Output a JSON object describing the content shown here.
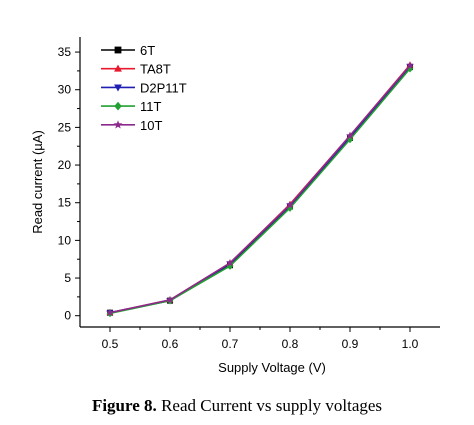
{
  "caption": {
    "label": "Figure 8.",
    "text": " Read Current vs supply voltages"
  },
  "chart_data": {
    "type": "line",
    "xlabel": "Supply Voltage (V)",
    "ylabel": "Read current (µA)",
    "xlim": [
      0.45,
      1.05
    ],
    "ylim": [
      -1.5,
      37
    ],
    "xticks": [
      0.5,
      0.6,
      0.7,
      0.8,
      0.9,
      1.0
    ],
    "xtick_labels": [
      "0.5",
      "0.6",
      "0.7",
      "0.8",
      "0.9",
      "1.0"
    ],
    "yticks": [
      0,
      5,
      10,
      15,
      20,
      25,
      30,
      35
    ],
    "ytick_labels": [
      "0",
      "5",
      "10",
      "15",
      "20",
      "25",
      "30",
      "35"
    ],
    "grid": false,
    "legend_position": "top-left",
    "x": [
      0.5,
      0.6,
      0.7,
      0.8,
      0.9,
      1.0
    ],
    "series": [
      {
        "name": "6T",
        "values": [
          0.4,
          2.0,
          6.7,
          14.5,
          23.6,
          33.0
        ],
        "color": "#000000",
        "marker": "square"
      },
      {
        "name": "TA8T",
        "values": [
          0.4,
          2.1,
          7.0,
          14.8,
          23.9,
          33.3
        ],
        "color": "#e8192c",
        "marker": "triangle-up"
      },
      {
        "name": "D2P11T",
        "values": [
          0.4,
          2.0,
          6.9,
          14.6,
          23.7,
          33.1
        ],
        "color": "#1f1fb4",
        "marker": "triangle-down"
      },
      {
        "name": "11T",
        "values": [
          0.3,
          2.0,
          6.6,
          14.3,
          23.4,
          32.8
        ],
        "color": "#22a032",
        "marker": "diamond"
      },
      {
        "name": "10T",
        "values": [
          0.4,
          2.1,
          7.0,
          14.7,
          23.9,
          33.2
        ],
        "color": "#8b2a8b",
        "marker": "star"
      }
    ]
  }
}
